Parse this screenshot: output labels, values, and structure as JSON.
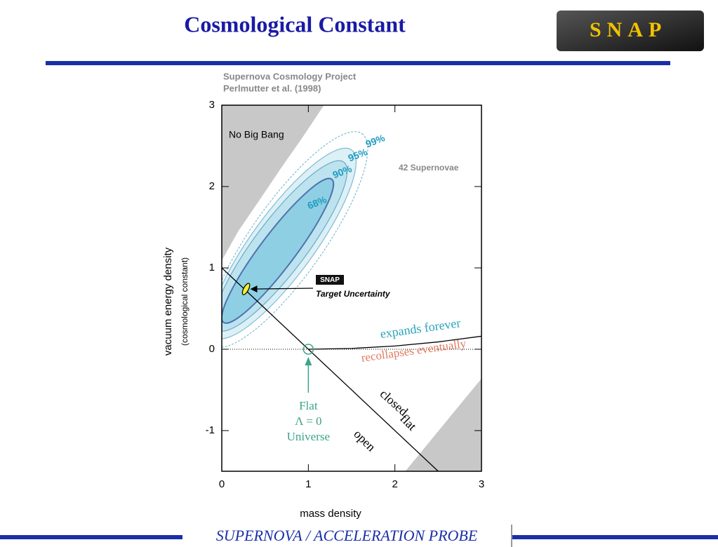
{
  "header": {
    "title": "Cosmological Constant",
    "logo": "SNAP"
  },
  "footer": {
    "text": "SUPERNOVA / ACCELERATION PROBE"
  },
  "chart_data": {
    "type": "contour",
    "title": "Supernova Cosmology Project",
    "subtitle": "Perlmutter et al. (1998)",
    "xlabel": "mass density",
    "ylabel": "vacuum energy density",
    "ylabel_note": "(cosmological constant)",
    "xlim": [
      0,
      3
    ],
    "ylim": [
      -1.5,
      3
    ],
    "xticks": [
      0,
      1,
      2,
      3
    ],
    "yticks": [
      -1,
      0,
      1,
      2,
      3
    ],
    "regions": [
      {
        "label": "No Big Bang",
        "x": [
          0,
          0,
          0.19,
          0.44,
          0.68,
          0.93,
          1.18
        ],
        "y": [
          3,
          1.09,
          1.45,
          1.84,
          2.22,
          2.6,
          3
        ]
      },
      {
        "x": [
          2.12,
          3,
          3
        ],
        "y": [
          -1.5,
          -1.5,
          -0.36
        ]
      }
    ],
    "contours": [
      {
        "label": "68%",
        "x": [
          0.02,
          1.27
        ],
        "y": [
          0.33,
          2.09
        ],
        "width": 0.2
      },
      {
        "label": "90%",
        "x": [
          -0.05,
          1.41
        ],
        "y": [
          0.24,
          2.3
        ],
        "width": 0.3
      },
      {
        "label": "95%",
        "x": [
          -0.08,
          1.5
        ],
        "y": [
          0.15,
          2.45
        ],
        "width": 0.36
      },
      {
        "label": "99%",
        "x": [
          -0.1,
          1.62
        ],
        "y": [
          0.05,
          2.65
        ],
        "width": 0.42
      }
    ],
    "curves": [
      {
        "x": [
          0,
          3
        ],
        "y": [
          0,
          0
        ],
        "style": "dotted"
      },
      {
        "x": [
          0,
          2.5
        ],
        "y": [
          1,
          -1.5
        ],
        "style": "solid"
      },
      {
        "x": [
          1,
          1.5,
          2,
          2.5,
          3
        ],
        "y": [
          0,
          0.01,
          0.04,
          0.09,
          0.16
        ],
        "style": "solid"
      }
    ],
    "target": {
      "badge": "SNAP",
      "text": "Target Uncertainty",
      "x": 0.28,
      "y": 0.74
    },
    "flat_point": {
      "x": 1,
      "y": 0,
      "label": [
        "Flat",
        "Λ = 0",
        "Universe"
      ]
    },
    "annotations": [
      "42 Supernovae",
      "expands forever",
      "recollapses eventually",
      "closed",
      "flat",
      "open"
    ]
  }
}
